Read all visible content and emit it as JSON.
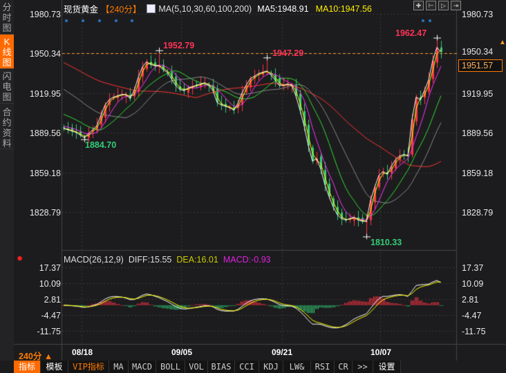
{
  "sidebar": {
    "tabs": [
      {
        "label": "分时图"
      },
      {
        "label": "K线图",
        "active": true
      },
      {
        "label": "闪电图"
      },
      {
        "label": "合约资料"
      }
    ]
  },
  "header": {
    "instrument": "现货黄金",
    "period": "【240分】",
    "ma_params": "MA(5,10,30,60,100,200)",
    "ma5": "MA5:1948.91",
    "ma10": "MA10:1947.56",
    "icons": [
      "crosshair-icon",
      "range-icon",
      "zoom-icon",
      "scroll-right-icon"
    ]
  },
  "price_axis": {
    "left": [
      "1980.73",
      "1950.34",
      "1919.95",
      "1889.56",
      "1859.18",
      "1828.79"
    ],
    "right": [
      "1980.73",
      "1950.34",
      "1919.95",
      "1889.56",
      "1859.18",
      "1828.79"
    ],
    "current_price": "1951.57"
  },
  "annotations": {
    "high1": "1952.79",
    "high2": "1947.29",
    "high3": "1962.47",
    "low1": "1884.70",
    "low2": "1810.33"
  },
  "macd": {
    "label": "MACD(26,12,9)",
    "diff": "DIFF:15.55",
    "dea": "DEA:16.01",
    "macd": "MACD:-0.93",
    "axis": [
      "17.37",
      "10.09",
      "2.81",
      "-4.47",
      "-11.75"
    ]
  },
  "period_selector": "240分 ▲",
  "dates": [
    "08/18",
    "09/05",
    "09/21",
    "10/07"
  ],
  "toolbar": [
    "指标",
    "模板",
    "VIP指标",
    "MA",
    "MACD",
    "BOLL",
    "VOL",
    "BIAS",
    "CCI",
    "KDJ",
    "LW&",
    "RSI",
    "CR",
    ">>",
    "设置"
  ],
  "colors": {
    "up": "#ff3344",
    "down": "#33cc77",
    "ma5": "#ffffff",
    "ma10": "#ffff00",
    "ma30": "#ff33ff",
    "ma60": "#33dd33",
    "ma100": "#888888",
    "ma200": "#ff3333",
    "accent": "#ff6a00"
  },
  "chart_data": {
    "type": "candlestick",
    "ylim": [
      1810,
      1985
    ],
    "y_ticks": [
      1980.73,
      1950.34,
      1919.95,
      1889.56,
      1859.18,
      1828.79
    ],
    "close": [
      1893,
      1892,
      1891,
      1890,
      1888,
      1886,
      1889,
      1892,
      1895,
      1903,
      1911,
      1915,
      1917,
      1918,
      1919,
      1919,
      1916,
      1922,
      1932,
      1940,
      1944,
      1942,
      1941,
      1941,
      1938,
      1936,
      1931,
      1926,
      1923,
      1922,
      1924,
      1925,
      1926,
      1927,
      1928,
      1926,
      1922,
      1913,
      1911,
      1910,
      1909,
      1907,
      1912,
      1920,
      1926,
      1931,
      1933,
      1935,
      1936,
      1937,
      1934,
      1930,
      1926,
      1926,
      1927,
      1926,
      1918,
      1907,
      1895,
      1880,
      1868,
      1870,
      1862,
      1850,
      1841,
      1833,
      1827,
      1824,
      1823,
      1824,
      1825,
      1823,
      1822,
      1822,
      1838,
      1848,
      1857,
      1860,
      1858,
      1864,
      1869,
      1872,
      1873,
      1872,
      1900,
      1917,
      1915,
      1922,
      1930,
      1945,
      1955,
      1951.57
    ],
    "marked_high": [
      1952.79,
      1947.29,
      1962.47
    ],
    "marked_low": [
      1884.7,
      1810.33
    ],
    "macd_ylim": [
      -14,
      19
    ]
  }
}
